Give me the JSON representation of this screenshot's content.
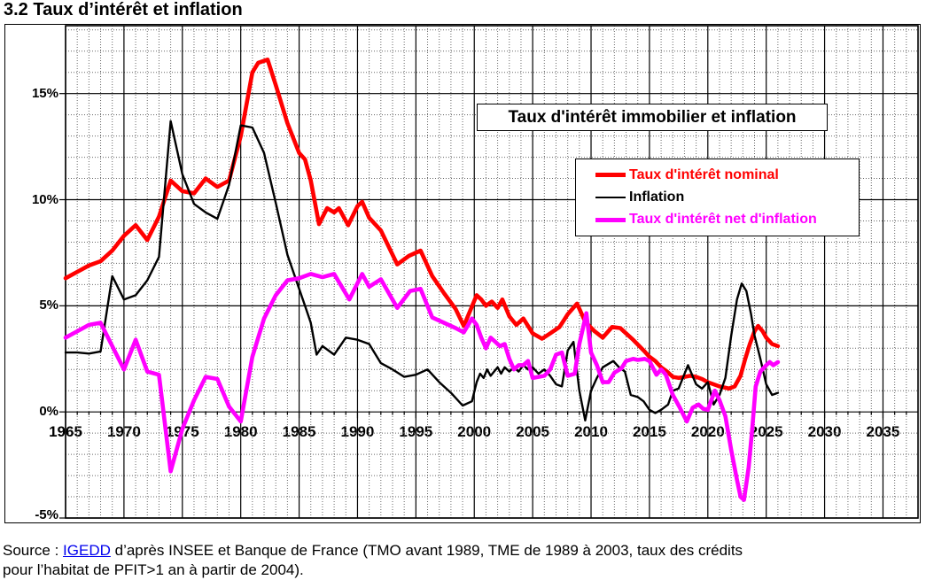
{
  "page": {
    "title": "3.2 Taux d’intérêt et inflation"
  },
  "source": {
    "prefix": "Source : ",
    "link_text": "IGEDD",
    "after_link": " d’après INSEE et  Banque de France (TMO avant 1989, TME de 1989 à 2003, taux des crédits",
    "line2": "pour l’habitat de PFIT>1 an à partir de 2004)."
  },
  "chart_data": {
    "type": "line",
    "title": "Taux d'intérêt immobilier  et inflation",
    "x_axis": {
      "min": 1965,
      "max": 2038,
      "tick_interval": 5,
      "minor_interval": 1,
      "tick_labels": [
        1965,
        1970,
        1975,
        1980,
        1985,
        1990,
        1995,
        2000,
        2005,
        2010,
        2015,
        2020,
        2025,
        2030,
        2035
      ]
    },
    "y_axis": {
      "min": -5,
      "max": 18.2,
      "tick_interval": 5,
      "minor_interval": 1,
      "ticks": [
        {
          "value": 15,
          "label": "15%"
        },
        {
          "value": 10,
          "label": "10%"
        },
        {
          "value": 5,
          "label": "5%"
        },
        {
          "value": 0,
          "label": "0%"
        },
        {
          "value": -5,
          "label": "-5%"
        }
      ]
    },
    "grid": {
      "major": "solid black",
      "minor": "dotted gray",
      "minor_color": "#666666",
      "major_color": "#000000"
    },
    "legend_position": "upper-right-box",
    "series": [
      {
        "name": "Taux d'intérêt nominal",
        "color": "#FF0000",
        "stroke_width": 4.6,
        "points": [
          [
            1965,
            6.3
          ],
          [
            1966,
            6.6
          ],
          [
            1967,
            6.9
          ],
          [
            1968,
            7.1
          ],
          [
            1969,
            7.6
          ],
          [
            1970,
            8.3
          ],
          [
            1971,
            8.8
          ],
          [
            1972,
            8.1
          ],
          [
            1973,
            9.2
          ],
          [
            1974,
            10.9
          ],
          [
            1975,
            10.4
          ],
          [
            1976,
            10.3
          ],
          [
            1977,
            11.0
          ],
          [
            1978,
            10.6
          ],
          [
            1979,
            10.9
          ],
          [
            1980,
            13.0
          ],
          [
            1981,
            16.0
          ],
          [
            1981.5,
            16.45
          ],
          [
            1982.3,
            16.6
          ],
          [
            1983,
            15.4
          ],
          [
            1984,
            13.6
          ],
          [
            1985,
            12.2
          ],
          [
            1985.5,
            11.9
          ],
          [
            1986,
            10.9
          ],
          [
            1986.7,
            8.85
          ],
          [
            1987.4,
            9.6
          ],
          [
            1988,
            9.4
          ],
          [
            1988.4,
            9.6
          ],
          [
            1989.2,
            8.8
          ],
          [
            1990,
            9.7
          ],
          [
            1990.4,
            9.9
          ],
          [
            1991,
            9.15
          ],
          [
            1992,
            8.55
          ],
          [
            1993.4,
            6.95
          ],
          [
            1994.4,
            7.35
          ],
          [
            1995.4,
            7.6
          ],
          [
            1996.4,
            6.4
          ],
          [
            1997.4,
            5.6
          ],
          [
            1998.4,
            4.85
          ],
          [
            1999.1,
            4.05
          ],
          [
            2000.2,
            5.5
          ],
          [
            2000.6,
            5.3
          ],
          [
            2001,
            5.0
          ],
          [
            2001.5,
            5.2
          ],
          [
            2002,
            4.9
          ],
          [
            2002.4,
            5.3
          ],
          [
            2003,
            4.5
          ],
          [
            2003.6,
            4.1
          ],
          [
            2004.2,
            4.4
          ],
          [
            2005,
            3.7
          ],
          [
            2005.8,
            3.45
          ],
          [
            2006.5,
            3.7
          ],
          [
            2007.3,
            4.0
          ],
          [
            2008,
            4.6
          ],
          [
            2008.8,
            5.1
          ],
          [
            2009.5,
            4.25
          ],
          [
            2010.3,
            3.8
          ],
          [
            2011,
            3.5
          ],
          [
            2011.8,
            4.0
          ],
          [
            2012.5,
            3.95
          ],
          [
            2013,
            3.7
          ],
          [
            2013.6,
            3.4
          ],
          [
            2014.5,
            2.9
          ],
          [
            2015,
            2.6
          ],
          [
            2015.5,
            2.4
          ],
          [
            2016,
            2.1
          ],
          [
            2016.5,
            1.9
          ],
          [
            2017,
            1.65
          ],
          [
            2017.5,
            1.6
          ],
          [
            2018,
            1.65
          ],
          [
            2018.5,
            1.7
          ],
          [
            2019,
            1.65
          ],
          [
            2019.5,
            1.55
          ],
          [
            2020,
            1.4
          ],
          [
            2020.5,
            1.3
          ],
          [
            2021,
            1.2
          ],
          [
            2021.8,
            1.1
          ],
          [
            2022.3,
            1.2
          ],
          [
            2022.8,
            1.7
          ],
          [
            2023.2,
            2.5
          ],
          [
            2023.6,
            3.2
          ],
          [
            2024,
            3.8
          ],
          [
            2024.3,
            4.05
          ],
          [
            2024.7,
            3.8
          ],
          [
            2025,
            3.5
          ],
          [
            2025.5,
            3.2
          ],
          [
            2026,
            3.1
          ]
        ]
      },
      {
        "name": "Inflation",
        "color": "#000000",
        "stroke_width": 2.4,
        "points": [
          [
            1965,
            2.8
          ],
          [
            1966,
            2.8
          ],
          [
            1967,
            2.75
          ],
          [
            1968,
            2.85
          ],
          [
            1969,
            6.4
          ],
          [
            1970,
            5.3
          ],
          [
            1971,
            5.5
          ],
          [
            1972,
            6.2
          ],
          [
            1973,
            7.3
          ],
          [
            1974,
            13.7
          ],
          [
            1975,
            11.2
          ],
          [
            1976,
            9.8
          ],
          [
            1977,
            9.4
          ],
          [
            1978,
            9.1
          ],
          [
            1979,
            10.7
          ],
          [
            1980,
            13.5
          ],
          [
            1981,
            13.4
          ],
          [
            1982,
            12.2
          ],
          [
            1983,
            9.85
          ],
          [
            1984,
            7.4
          ],
          [
            1985,
            5.8
          ],
          [
            1985.5,
            5.0
          ],
          [
            1986,
            4.2
          ],
          [
            1986.5,
            2.7
          ],
          [
            1987,
            3.1
          ],
          [
            1988,
            2.7
          ],
          [
            1989,
            3.5
          ],
          [
            1990,
            3.4
          ],
          [
            1991,
            3.2
          ],
          [
            1992,
            2.3
          ],
          [
            1993,
            2.0
          ],
          [
            1994,
            1.65
          ],
          [
            1995,
            1.75
          ],
          [
            1996,
            2.0
          ],
          [
            1997,
            1.4
          ],
          [
            1998,
            0.9
          ],
          [
            1999,
            0.3
          ],
          [
            1999.8,
            0.5
          ],
          [
            2000.2,
            1.4
          ],
          [
            2000.5,
            1.8
          ],
          [
            2000.8,
            1.6
          ],
          [
            2001.1,
            2.0
          ],
          [
            2001.4,
            1.7
          ],
          [
            2001.7,
            1.9
          ],
          [
            2002,
            2.1
          ],
          [
            2002.3,
            1.8
          ],
          [
            2002.6,
            2.1
          ],
          [
            2003,
            1.9
          ],
          [
            2003.4,
            2.1
          ],
          [
            2003.8,
            1.9
          ],
          [
            2004.2,
            2.2
          ],
          [
            2004.6,
            2.0
          ],
          [
            2005,
            2.1
          ],
          [
            2005.5,
            1.8
          ],
          [
            2006,
            2.0
          ],
          [
            2006.5,
            1.7
          ],
          [
            2007,
            1.3
          ],
          [
            2007.5,
            1.2
          ],
          [
            2008,
            2.9
          ],
          [
            2008.5,
            3.3
          ],
          [
            2009,
            1.0
          ],
          [
            2009.5,
            -0.4
          ],
          [
            2010,
            1.0
          ],
          [
            2010.5,
            1.6
          ],
          [
            2011,
            2.1
          ],
          [
            2011.9,
            2.4
          ],
          [
            2012.4,
            2.1
          ],
          [
            2012.9,
            1.9
          ],
          [
            2013.4,
            0.8
          ],
          [
            2014,
            0.7
          ],
          [
            2014.5,
            0.5
          ],
          [
            2015,
            0.1
          ],
          [
            2015.5,
            -0.05
          ],
          [
            2016,
            0.1
          ],
          [
            2016.6,
            0.35
          ],
          [
            2017,
            1.0
          ],
          [
            2017.5,
            1.1
          ],
          [
            2018.3,
            2.2
          ],
          [
            2019,
            1.3
          ],
          [
            2019.5,
            1.1
          ],
          [
            2020,
            1.4
          ],
          [
            2020.5,
            0.35
          ],
          [
            2021,
            0.8
          ],
          [
            2021.5,
            1.6
          ],
          [
            2022,
            3.6
          ],
          [
            2022.5,
            5.3
          ],
          [
            2022.9,
            6.05
          ],
          [
            2023.3,
            5.7
          ],
          [
            2023.7,
            4.6
          ],
          [
            2024,
            3.6
          ],
          [
            2024.5,
            2.5
          ],
          [
            2025,
            1.3
          ],
          [
            2025.5,
            0.8
          ],
          [
            2026,
            0.9
          ]
        ]
      },
      {
        "name": "Taux d'intérêt net d'inflation",
        "color": "#FF00FF",
        "stroke_width": 4.6,
        "points": [
          [
            1965,
            3.5
          ],
          [
            1966,
            3.8
          ],
          [
            1967,
            4.1
          ],
          [
            1968,
            4.2
          ],
          [
            1969,
            3.1
          ],
          [
            1970,
            2.0
          ],
          [
            1971,
            3.4
          ],
          [
            1972,
            1.9
          ],
          [
            1973,
            1.75
          ],
          [
            1974,
            -2.8
          ],
          [
            1975,
            -0.8
          ],
          [
            1976,
            0.55
          ],
          [
            1977,
            1.65
          ],
          [
            1978,
            1.55
          ],
          [
            1979,
            0.25
          ],
          [
            1980,
            -0.45
          ],
          [
            1981,
            2.6
          ],
          [
            1982,
            4.4
          ],
          [
            1983,
            5.5
          ],
          [
            1984,
            6.2
          ],
          [
            1985,
            6.3
          ],
          [
            1986,
            6.5
          ],
          [
            1987,
            6.35
          ],
          [
            1988,
            6.5
          ],
          [
            1989.3,
            5.3
          ],
          [
            1990.4,
            6.5
          ],
          [
            1991,
            5.9
          ],
          [
            1992,
            6.25
          ],
          [
            1993.4,
            4.9
          ],
          [
            1994.5,
            5.7
          ],
          [
            1995.4,
            5.8
          ],
          [
            1996.4,
            4.45
          ],
          [
            1997.4,
            4.2
          ],
          [
            1998.4,
            3.95
          ],
          [
            1999.1,
            3.75
          ],
          [
            1999.8,
            4.4
          ],
          [
            2000.2,
            4.1
          ],
          [
            2000.6,
            3.5
          ],
          [
            2001,
            3.0
          ],
          [
            2001.4,
            3.5
          ],
          [
            2001.8,
            3.3
          ],
          [
            2002.2,
            3.1
          ],
          [
            2002.6,
            3.2
          ],
          [
            2003,
            2.5
          ],
          [
            2003.4,
            2.0
          ],
          [
            2003.8,
            2.2
          ],
          [
            2004.2,
            2.2
          ],
          [
            2004.6,
            2.4
          ],
          [
            2005,
            1.6
          ],
          [
            2005.5,
            1.65
          ],
          [
            2006,
            1.7
          ],
          [
            2006.5,
            2.0
          ],
          [
            2007,
            2.7
          ],
          [
            2007.5,
            2.8
          ],
          [
            2008,
            1.7
          ],
          [
            2008.6,
            1.8
          ],
          [
            2009,
            3.2
          ],
          [
            2009.6,
            4.65
          ],
          [
            2010,
            2.8
          ],
          [
            2010.5,
            2.2
          ],
          [
            2011,
            1.4
          ],
          [
            2011.5,
            1.4
          ],
          [
            2012,
            1.85
          ],
          [
            2012.6,
            2.05
          ],
          [
            2013,
            2.4
          ],
          [
            2013.6,
            2.5
          ],
          [
            2014,
            2.45
          ],
          [
            2014.6,
            2.5
          ],
          [
            2015,
            2.4
          ],
          [
            2015.6,
            1.75
          ],
          [
            2016,
            2.0
          ],
          [
            2016.4,
            1.75
          ],
          [
            2017,
            0.8
          ],
          [
            2017.6,
            0.2
          ],
          [
            2018.2,
            -0.45
          ],
          [
            2018.7,
            0.2
          ],
          [
            2019.2,
            0.35
          ],
          [
            2019.6,
            0.15
          ],
          [
            2020,
            0.1
          ],
          [
            2020.6,
            1.0
          ],
          [
            2021,
            0.55
          ],
          [
            2021.5,
            -0.2
          ],
          [
            2022,
            -1.8
          ],
          [
            2022.5,
            -3.2
          ],
          [
            2022.8,
            -4.0
          ],
          [
            2023.1,
            -4.15
          ],
          [
            2023.5,
            -2.6
          ],
          [
            2023.8,
            -0.8
          ],
          [
            2024.1,
            1.2
          ],
          [
            2024.5,
            1.9
          ],
          [
            2025,
            2.2
          ],
          [
            2025.3,
            2.35
          ],
          [
            2025.6,
            2.2
          ],
          [
            2026,
            2.35
          ]
        ]
      }
    ]
  }
}
